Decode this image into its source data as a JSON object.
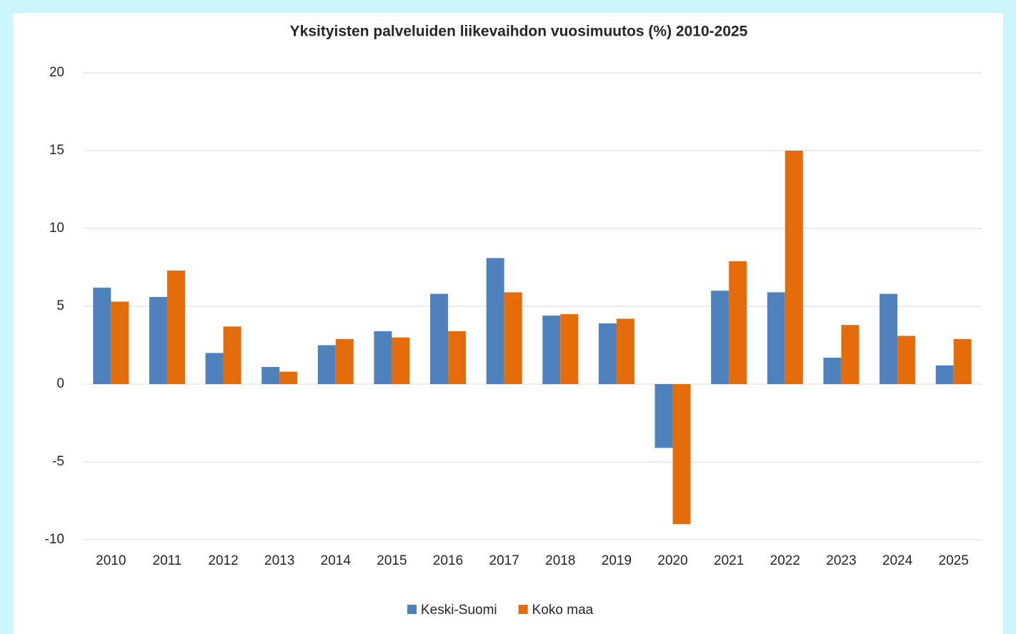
{
  "chart_data": {
    "type": "bar",
    "title": "Yksityisten palveluiden liikevaihdon vuosimuutos (%) 2010-2025",
    "categories": [
      "2010",
      "2011",
      "2012",
      "2013",
      "2014",
      "2015",
      "2016",
      "2017",
      "2018",
      "2019",
      "2020",
      "2021",
      "2022",
      "2023",
      "2024",
      "2025"
    ],
    "series": [
      {
        "name": "Keski-Suomi",
        "color": "#4f81bd",
        "values": [
          6.2,
          5.6,
          2.0,
          1.1,
          2.5,
          3.4,
          5.8,
          8.1,
          4.4,
          3.9,
          -4.1,
          6.0,
          5.9,
          1.7,
          5.8,
          1.2
        ]
      },
      {
        "name": "Koko maa",
        "color": "#e46c0a",
        "values": [
          5.3,
          7.3,
          3.7,
          0.8,
          2.9,
          3.0,
          3.4,
          5.9,
          4.5,
          4.2,
          -9.0,
          7.9,
          15.0,
          3.8,
          3.1,
          2.9
        ]
      }
    ],
    "ylim": [
      -10,
      20
    ],
    "yticks": [
      -10,
      -5,
      0,
      5,
      10,
      15,
      20
    ],
    "grid": true,
    "legend": "bottom"
  }
}
